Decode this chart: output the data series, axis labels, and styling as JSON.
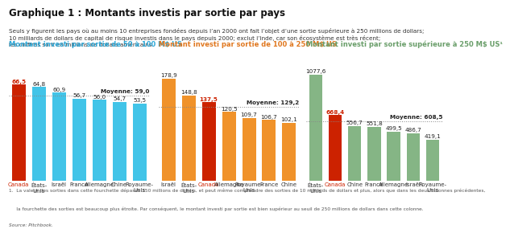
{
  "title": "Graphique 1 : Montants investis par sortie par pays",
  "subtitle_lines": [
    "Seuls y figurent les pays où au moins 10 entreprises fondées depuis l’an 2000 ont fait l’objet d’une sortie supérieure à 250 millions de dollars;",
    "10 milliards de dollars de capital de risque investis dans le pays depuis 2000; exclut l’Inde, car son écosystème est très récent;",
    "les chiffres sont en millions de dollars américains."
  ],
  "footnote_line1": "1.  La valeur des sorties dans cette fourchette dépasse 250 millions de dollars, et peut même comprendre des sorties de 10 milliards de dollars et plus, alors que dans les deux colonnes précédentes,",
  "footnote_line2": "     la fourchette des sorties est beaucoup plus étroite. Par conséquent, le montant investi par sortie est bien supérieur au seuil de 250 millions de dollars dans cette colonne.",
  "source": "Source: Pitchbook.",
  "panels": [
    {
      "title": "Montant investi par sortie de 50 à 100 M$ US",
      "title_color": "#2da8d8",
      "bar_color": "#42c4e8",
      "highlight_color": "#cc2200",
      "highlight_country": "Canada",
      "mean_label": "Moyenne: 59,0",
      "mean_value": 59.0,
      "categories": [
        "Canada",
        "États-\nUnis",
        "Israël",
        "France",
        "Allemagne",
        "Chine",
        "Royaume-\nUnis"
      ],
      "values": [
        66.5,
        64.8,
        60.9,
        56.7,
        56.0,
        54.7,
        53.5
      ],
      "ylim": [
        0,
        85
      ]
    },
    {
      "title": "Montant investi par sortie de 100 à 250 M$ US",
      "title_color": "#e07820",
      "bar_color": "#f0922a",
      "highlight_color": "#cc2200",
      "highlight_country": "Canada",
      "mean_label": "Moyenne: 129,2",
      "mean_value": 129.2,
      "categories": [
        "Israël",
        "États-\nUnis",
        "Canada",
        "Allemagne",
        "Royaume-\nUnis",
        "France",
        "Chine"
      ],
      "values": [
        178.9,
        148.8,
        137.5,
        120.5,
        109.7,
        106.7,
        102.1
      ],
      "ylim": [
        0,
        215
      ]
    },
    {
      "title": "Montant investi par sortie supérieure à 250 M$ US¹",
      "title_color": "#6a9e6a",
      "bar_color": "#85b585",
      "highlight_color": "#cc2200",
      "highlight_country": "Canada",
      "mean_label": "Moyenne: 608,5",
      "mean_value": 608.5,
      "categories": [
        "États-\nUnis",
        "Canada",
        "Chine",
        "France",
        "Allemagne",
        "Israël",
        "Royaume-\nUnis"
      ],
      "values": [
        1077.6,
        668.4,
        556.7,
        551.8,
        499.5,
        486.7,
        419.1
      ],
      "ylim": [
        0,
        1250
      ]
    }
  ],
  "background_color": "#ffffff",
  "title_fontsize": 8.5,
  "subtitle_fontsize": 5.2,
  "bar_label_fontsize": 5.2,
  "axis_label_fontsize": 5.0,
  "panel_title_fontsize": 6.0,
  "mean_fontsize": 5.2,
  "footnote_fontsize": 4.2,
  "canada_label_color": "#cc2200"
}
